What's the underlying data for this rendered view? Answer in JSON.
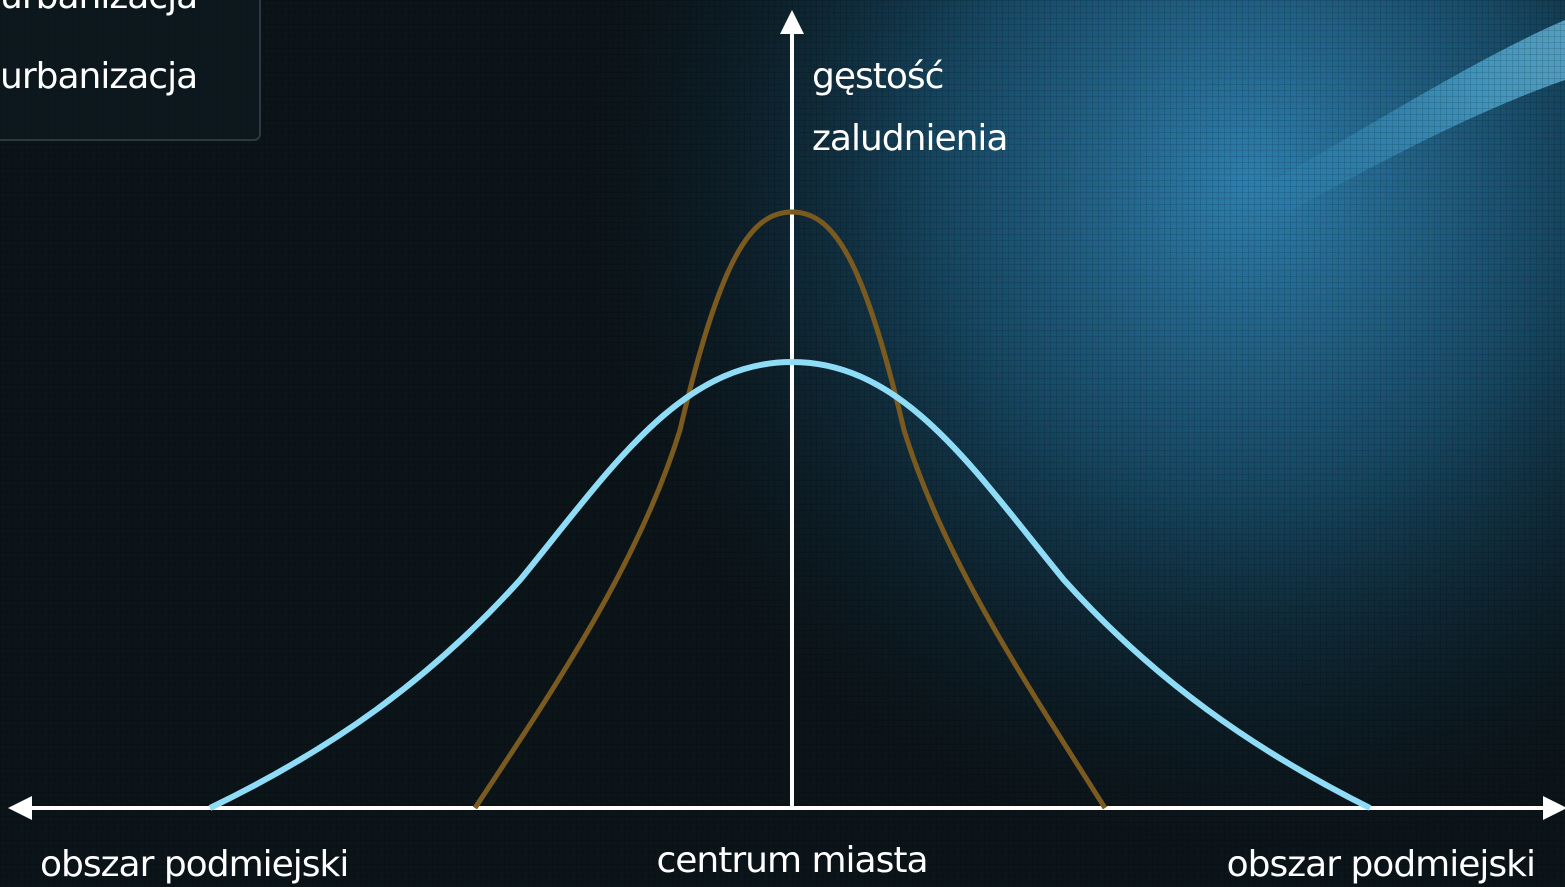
{
  "legend": {
    "items": [
      "urbanizacja",
      "urbanizacja"
    ]
  },
  "axes": {
    "y_label": [
      "gęstość",
      "zaludnienia"
    ],
    "x_labels": [
      "obszar podmiejski",
      "centrum miasta",
      "obszar podmiejski"
    ]
  }
}
